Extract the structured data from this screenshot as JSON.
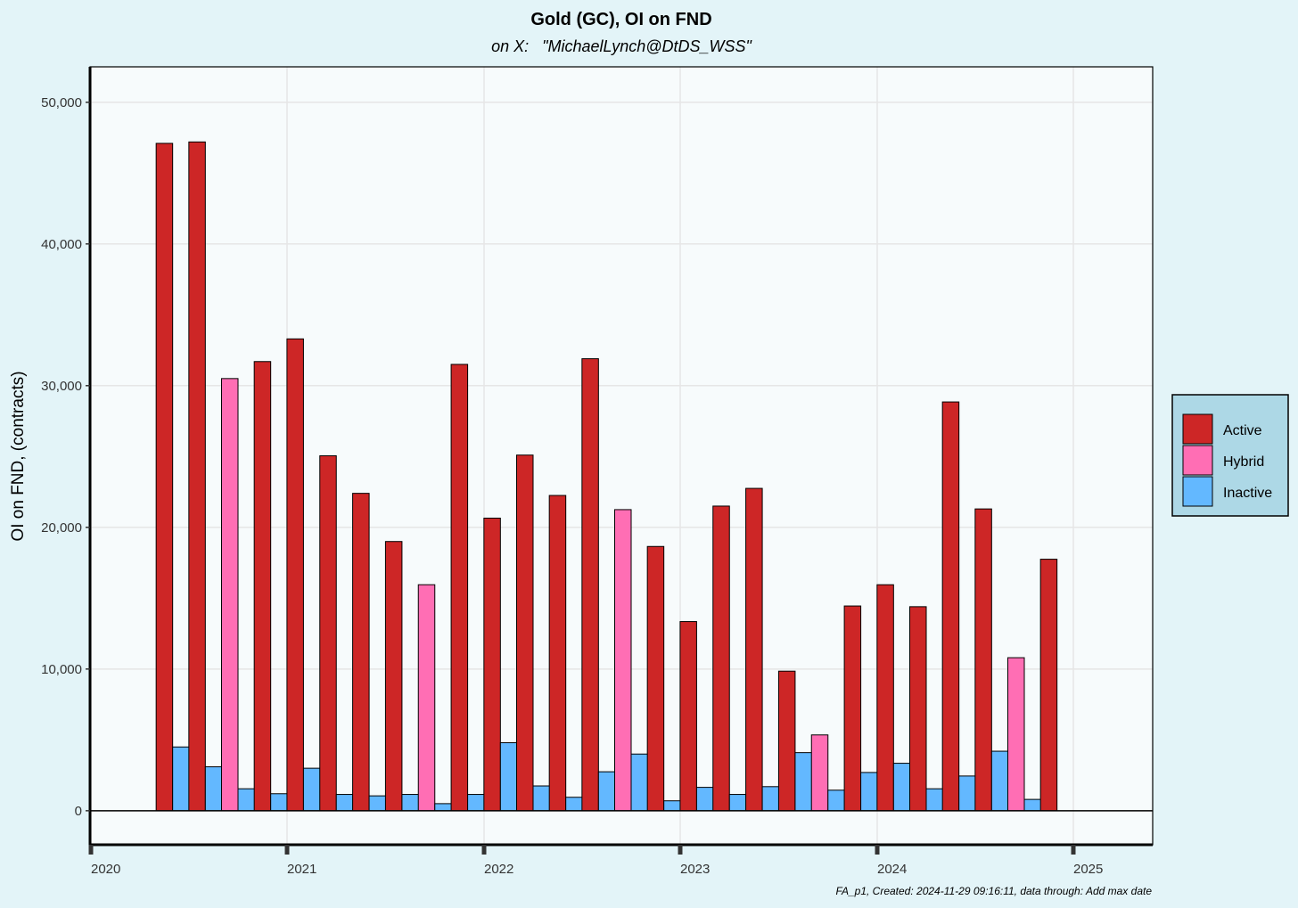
{
  "chart_data": {
    "type": "bar",
    "title": "Gold (GC), OI on FND",
    "subtitle": "on X:   \"MichaelLynch@DtDS_WSS\"",
    "caption": "FA_p1, Created: 2024-11-29 09:16:11, data through:  Add max date",
    "xlabel": "",
    "ylabel": "OI on FND, (contracts)",
    "x_ticks": [
      "2020",
      "2021",
      "2022",
      "2023",
      "2024",
      "2025"
    ],
    "y_ticks": [
      0,
      10000,
      20000,
      30000,
      40000,
      50000
    ],
    "y_tick_labels": [
      "0",
      "10,000",
      "20,000",
      "30,000",
      "40,000",
      "50,000"
    ],
    "ylim": [
      -2400,
      52500
    ],
    "xlim": [
      "2020-01-01",
      "2025-05-01"
    ],
    "legend_position": "right",
    "legend": [
      "Active",
      "Hybrid",
      "Inactive"
    ],
    "colors": {
      "Active": "#cd2626",
      "Hybrid": "#ff6eb4",
      "Inactive": "#63b8ff"
    },
    "bars": [
      {
        "date": "2020-06-01",
        "category": "Active",
        "value": 47100
      },
      {
        "date": "2020-06-01",
        "category": "Inactive",
        "value": 4500
      },
      {
        "date": "2020-08-01",
        "category": "Active",
        "value": 47200
      },
      {
        "date": "2020-08-01",
        "category": "Inactive",
        "value": 3100
      },
      {
        "date": "2020-10-01",
        "category": "Hybrid",
        "value": 30500
      },
      {
        "date": "2020-10-01",
        "category": "Inactive",
        "value": 1550
      },
      {
        "date": "2020-12-01",
        "category": "Active",
        "value": 31700
      },
      {
        "date": "2020-12-01",
        "category": "Inactive",
        "value": 1200
      },
      {
        "date": "2021-02-01",
        "category": "Active",
        "value": 33300
      },
      {
        "date": "2021-02-01",
        "category": "Inactive",
        "value": 3000
      },
      {
        "date": "2021-04-01",
        "category": "Active",
        "value": 25050
      },
      {
        "date": "2021-04-01",
        "category": "Inactive",
        "value": 1150
      },
      {
        "date": "2021-06-01",
        "category": "Active",
        "value": 22400
      },
      {
        "date": "2021-06-01",
        "category": "Inactive",
        "value": 1050
      },
      {
        "date": "2021-08-01",
        "category": "Active",
        "value": 19000
      },
      {
        "date": "2021-08-01",
        "category": "Inactive",
        "value": 1150
      },
      {
        "date": "2021-10-01",
        "category": "Hybrid",
        "value": 15950
      },
      {
        "date": "2021-10-01",
        "category": "Inactive",
        "value": 500
      },
      {
        "date": "2021-12-01",
        "category": "Active",
        "value": 31500
      },
      {
        "date": "2021-12-01",
        "category": "Inactive",
        "value": 1150
      },
      {
        "date": "2022-02-01",
        "category": "Active",
        "value": 20650
      },
      {
        "date": "2022-02-01",
        "category": "Inactive",
        "value": 4800
      },
      {
        "date": "2022-04-01",
        "category": "Active",
        "value": 25100
      },
      {
        "date": "2022-04-01",
        "category": "Inactive",
        "value": 1750
      },
      {
        "date": "2022-06-01",
        "category": "Active",
        "value": 22250
      },
      {
        "date": "2022-06-01",
        "category": "Inactive",
        "value": 950
      },
      {
        "date": "2022-08-01",
        "category": "Active",
        "value": 31900
      },
      {
        "date": "2022-08-01",
        "category": "Inactive",
        "value": 2750
      },
      {
        "date": "2022-10-01",
        "category": "Hybrid",
        "value": 21250
      },
      {
        "date": "2022-10-01",
        "category": "Inactive",
        "value": 4000
      },
      {
        "date": "2022-12-01",
        "category": "Active",
        "value": 18650
      },
      {
        "date": "2022-12-01",
        "category": "Inactive",
        "value": 700
      },
      {
        "date": "2023-02-01",
        "category": "Active",
        "value": 13350
      },
      {
        "date": "2023-02-01",
        "category": "Inactive",
        "value": 1650
      },
      {
        "date": "2023-04-01",
        "category": "Active",
        "value": 21500
      },
      {
        "date": "2023-04-01",
        "category": "Inactive",
        "value": 1150
      },
      {
        "date": "2023-06-01",
        "category": "Active",
        "value": 22750
      },
      {
        "date": "2023-06-01",
        "category": "Inactive",
        "value": 1700
      },
      {
        "date": "2023-08-01",
        "category": "Active",
        "value": 9850
      },
      {
        "date": "2023-08-01",
        "category": "Inactive",
        "value": 4100
      },
      {
        "date": "2023-10-01",
        "category": "Hybrid",
        "value": 5350
      },
      {
        "date": "2023-10-01",
        "category": "Inactive",
        "value": 1450
      },
      {
        "date": "2023-12-01",
        "category": "Active",
        "value": 14450
      },
      {
        "date": "2023-12-01",
        "category": "Inactive",
        "value": 2700
      },
      {
        "date": "2024-02-01",
        "category": "Active",
        "value": 15950
      },
      {
        "date": "2024-02-01",
        "category": "Inactive",
        "value": 3350
      },
      {
        "date": "2024-04-01",
        "category": "Active",
        "value": 14400
      },
      {
        "date": "2024-04-01",
        "category": "Inactive",
        "value": 1550
      },
      {
        "date": "2024-06-01",
        "category": "Active",
        "value": 28850
      },
      {
        "date": "2024-06-01",
        "category": "Inactive",
        "value": 2450
      },
      {
        "date": "2024-08-01",
        "category": "Active",
        "value": 21300
      },
      {
        "date": "2024-08-01",
        "category": "Inactive",
        "value": 4200
      },
      {
        "date": "2024-10-01",
        "category": "Hybrid",
        "value": 10800
      },
      {
        "date": "2024-10-01",
        "category": "Inactive",
        "value": 800
      },
      {
        "date": "2024-12-01",
        "category": "Active",
        "value": 17750
      }
    ]
  }
}
